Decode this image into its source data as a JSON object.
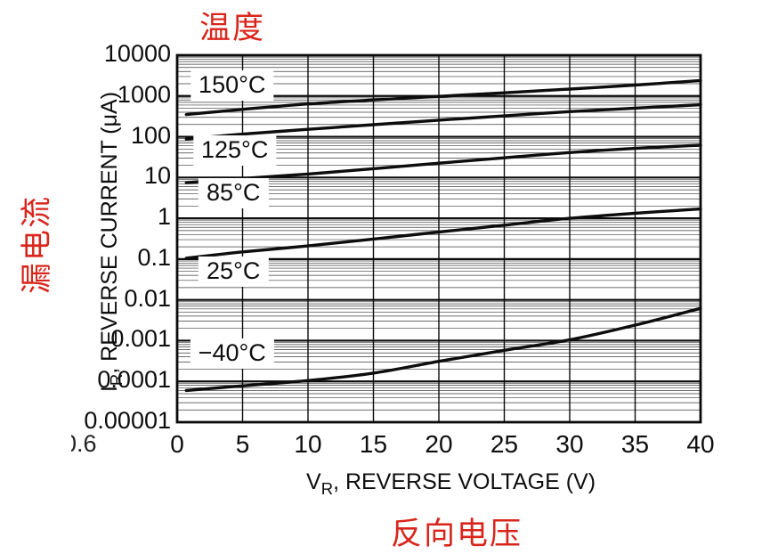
{
  "annotations": {
    "top": "温度",
    "left": "漏电流",
    "bottom": "反向电压",
    "artifact": "0.6"
  },
  "colors": {
    "annotation_red": "#d9261c",
    "curve": "#0d0d0d",
    "grid_major": "#0a0a0a",
    "grid_minor": "#3d3d3d"
  },
  "chart_data": {
    "type": "line",
    "title": "",
    "x": {
      "label": "VR, REVERSE VOLTAGE (V)",
      "label_parts": {
        "base": "V",
        "sub": "R",
        "rest": ", REVERSE VOLTAGE (V)"
      },
      "min": 0,
      "max": 40,
      "ticks": [
        0,
        5,
        10,
        15,
        20,
        25,
        30,
        35,
        40
      ],
      "scale": "linear",
      "grid": "major"
    },
    "y": {
      "label": "IR, REVERSE CURRENT (uA)",
      "label_parts": {
        "base": "I",
        "sub": "R",
        "rest": ", REVERSE CURRENT (μA)"
      },
      "min": 1e-05,
      "max": 10000,
      "ticks": [
        "10000",
        "1000",
        "100",
        "10",
        "1",
        "0.1",
        "0.01",
        "0.001",
        "0.0001",
        "0.00001"
      ],
      "scale": "log",
      "grid": "major+minor"
    },
    "legend": "inline-labels",
    "series": [
      {
        "name": "150°C",
        "label_at": {
          "v": 4.2,
          "i": 1800
        },
        "points": [
          [
            0.7,
            350
          ],
          [
            5,
            470
          ],
          [
            10,
            640
          ],
          [
            15,
            800
          ],
          [
            20,
            980
          ],
          [
            25,
            1200
          ],
          [
            30,
            1480
          ],
          [
            35,
            1850
          ],
          [
            40,
            2400
          ]
        ]
      },
      {
        "name": "125°C",
        "label_at": {
          "v": 4.4,
          "i": 46
        },
        "points": [
          [
            0.7,
            88
          ],
          [
            5,
            116
          ],
          [
            10,
            152
          ],
          [
            15,
            198
          ],
          [
            20,
            255
          ],
          [
            25,
            325
          ],
          [
            30,
            415
          ],
          [
            35,
            505
          ],
          [
            40,
            610
          ]
        ]
      },
      {
        "name": "85°C",
        "label_at": {
          "v": 4.3,
          "i": 4.2
        },
        "points": [
          [
            0.7,
            7.5
          ],
          [
            5,
            9.5
          ],
          [
            10,
            12.2
          ],
          [
            15,
            16.5
          ],
          [
            20,
            22.5
          ],
          [
            25,
            30.5
          ],
          [
            30,
            41
          ],
          [
            35,
            52
          ],
          [
            40,
            62
          ]
        ]
      },
      {
        "name": "25°C",
        "label_at": {
          "v": 4.3,
          "i": 0.05
        },
        "points": [
          [
            0.7,
            0.105
          ],
          [
            5,
            0.15
          ],
          [
            10,
            0.21
          ],
          [
            15,
            0.31
          ],
          [
            20,
            0.46
          ],
          [
            25,
            0.68
          ],
          [
            30,
            1.0
          ],
          [
            35,
            1.33
          ],
          [
            40,
            1.7
          ]
        ]
      },
      {
        "name": "−40°C",
        "label_at": {
          "v": 4.2,
          "i": 0.00047
        },
        "points": [
          [
            0.7,
            6e-05
          ],
          [
            5,
            7.8e-05
          ],
          [
            10,
            0.000105
          ],
          [
            15,
            0.00016
          ],
          [
            20,
            0.00031
          ],
          [
            25,
            0.00058
          ],
          [
            30,
            0.00105
          ],
          [
            35,
            0.0024
          ],
          [
            40,
            0.0062
          ]
        ]
      }
    ]
  }
}
